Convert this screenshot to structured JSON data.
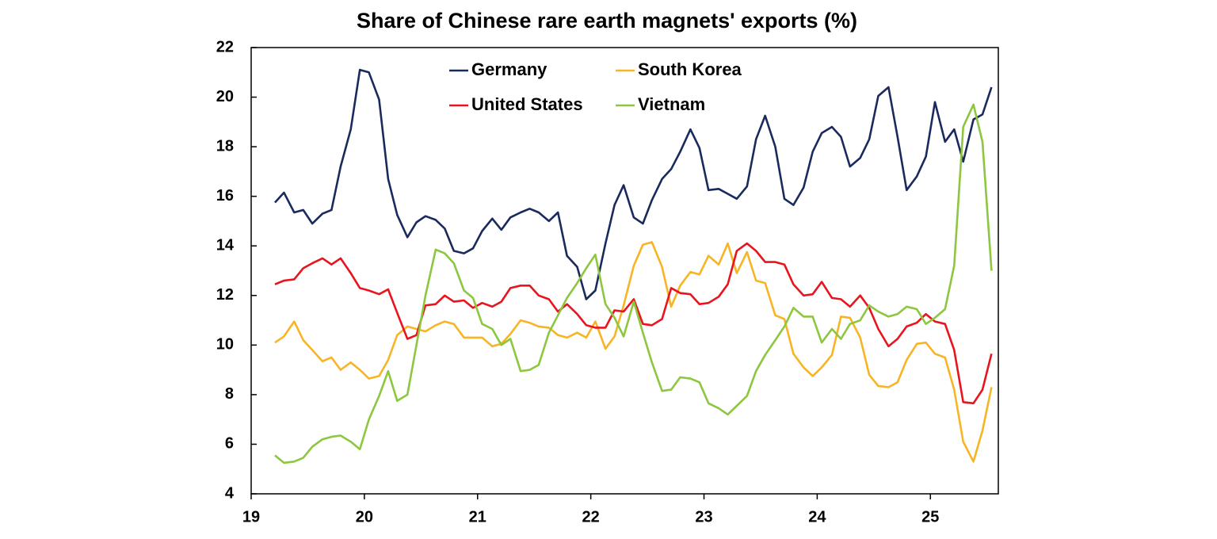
{
  "chart_data": {
    "type": "line",
    "title": "Share of Chinese rare earth magnets' exports (%)",
    "x": [
      19.21,
      19.29,
      19.38,
      19.46,
      19.54,
      19.63,
      19.71,
      19.79,
      19.88,
      19.96,
      20.04,
      20.13,
      20.21,
      20.29,
      20.38,
      20.46,
      20.54,
      20.63,
      20.71,
      20.79,
      20.88,
      20.96,
      21.04,
      21.13,
      21.21,
      21.29,
      21.38,
      21.46,
      21.54,
      21.63,
      21.71,
      21.79,
      21.88,
      21.96,
      22.04,
      22.13,
      22.21,
      22.29,
      22.38,
      22.46,
      22.54,
      22.63,
      22.71,
      22.79,
      22.88,
      22.96,
      23.04,
      23.13,
      23.21,
      23.29,
      23.38,
      23.46,
      23.54,
      23.63,
      23.71,
      23.79,
      23.88,
      23.96,
      24.04,
      24.13,
      24.21,
      24.29,
      24.38,
      24.46,
      24.54,
      24.63,
      24.71,
      24.79,
      24.88,
      24.96,
      25.04,
      25.13,
      25.21,
      25.29,
      25.38,
      25.46,
      25.54
    ],
    "series": [
      {
        "name": "Germany",
        "color": "#1b2a5c",
        "values": [
          15.75,
          16.15,
          15.35,
          15.45,
          14.9,
          15.3,
          15.45,
          17.2,
          18.7,
          21.1,
          21.0,
          19.9,
          16.7,
          15.25,
          14.35,
          14.95,
          15.2,
          15.05,
          14.7,
          13.8,
          13.7,
          13.9,
          14.6,
          15.1,
          14.65,
          15.15,
          15.35,
          15.5,
          15.35,
          15.0,
          15.35,
          13.6,
          13.15,
          11.85,
          12.2,
          14.1,
          15.65,
          16.45,
          15.15,
          14.9,
          15.85,
          16.7,
          17.1,
          17.8,
          18.7,
          17.95,
          16.25,
          16.3,
          16.1,
          15.9,
          16.4,
          18.3,
          19.25,
          18.0,
          15.9,
          15.65,
          16.35,
          17.8,
          18.55,
          18.8,
          18.4,
          17.2,
          17.55,
          18.3,
          20.05,
          20.4,
          18.4,
          16.25,
          16.8,
          17.6,
          19.8,
          18.2,
          18.7,
          17.4,
          19.1,
          19.3,
          20.4
        ]
      },
      {
        "name": "South Korea",
        "color": "#f7b526",
        "values": [
          10.1,
          10.35,
          10.95,
          10.2,
          9.8,
          9.35,
          9.5,
          9.0,
          9.3,
          9.0,
          8.65,
          8.75,
          9.4,
          10.4,
          10.75,
          10.65,
          10.55,
          10.8,
          10.95,
          10.85,
          10.3,
          10.3,
          10.3,
          9.95,
          10.05,
          10.45,
          11.0,
          10.9,
          10.75,
          10.7,
          10.4,
          10.3,
          10.5,
          10.3,
          10.95,
          9.85,
          10.35,
          11.6,
          13.2,
          14.05,
          14.15,
          13.15,
          11.55,
          12.4,
          12.95,
          12.85,
          13.6,
          13.25,
          14.1,
          12.9,
          13.75,
          12.6,
          12.5,
          11.2,
          11.05,
          9.65,
          9.1,
          8.75,
          9.1,
          9.6,
          11.15,
          11.1,
          10.3,
          8.8,
          8.35,
          8.3,
          8.5,
          9.4,
          10.05,
          10.1,
          9.65,
          9.5,
          8.2,
          6.1,
          5.3,
          6.55,
          8.3
        ]
      },
      {
        "name": "United States",
        "color": "#e8151e",
        "values": [
          12.45,
          12.6,
          12.65,
          13.1,
          13.3,
          13.5,
          13.25,
          13.5,
          12.9,
          12.3,
          12.2,
          12.05,
          12.25,
          11.3,
          10.25,
          10.4,
          11.6,
          11.65,
          12.0,
          11.75,
          11.8,
          11.5,
          11.7,
          11.55,
          11.75,
          12.3,
          12.4,
          12.4,
          12.0,
          11.85,
          11.35,
          11.65,
          11.25,
          10.8,
          10.7,
          10.7,
          11.4,
          11.35,
          11.85,
          10.85,
          10.8,
          11.05,
          12.3,
          12.1,
          12.05,
          11.65,
          11.7,
          11.95,
          12.45,
          13.8,
          14.1,
          13.8,
          13.35,
          13.35,
          13.25,
          12.45,
          12.0,
          12.05,
          12.55,
          11.9,
          11.85,
          11.55,
          12.0,
          11.5,
          10.65,
          9.95,
          10.25,
          10.75,
          10.9,
          11.25,
          10.95,
          10.85,
          9.8,
          7.7,
          7.65,
          8.2,
          9.65
        ]
      },
      {
        "name": "Vietnam",
        "color": "#8dc63f",
        "values": [
          5.55,
          5.25,
          5.3,
          5.45,
          5.9,
          6.2,
          6.3,
          6.35,
          6.1,
          5.8,
          7.0,
          7.95,
          8.95,
          7.75,
          8.0,
          10.0,
          12.0,
          13.85,
          13.7,
          13.3,
          12.2,
          11.9,
          10.85,
          10.65,
          10.0,
          10.25,
          8.95,
          9.0,
          9.2,
          10.5,
          11.2,
          11.9,
          12.5,
          13.1,
          13.65,
          11.65,
          11.1,
          10.35,
          11.75,
          10.5,
          9.3,
          8.15,
          8.2,
          8.7,
          8.65,
          8.5,
          7.65,
          7.45,
          7.2,
          7.55,
          7.95,
          8.95,
          9.6,
          10.2,
          10.75,
          11.5,
          11.15,
          11.15,
          10.1,
          10.65,
          10.25,
          10.85,
          11.0,
          11.6,
          11.35,
          11.15,
          11.25,
          11.55,
          11.45,
          10.85,
          11.1,
          11.45,
          13.2,
          18.8,
          19.7,
          18.2,
          13.0
        ]
      }
    ],
    "xlim": [
      19,
      25.6
    ],
    "xticks": [
      19,
      20,
      21,
      22,
      23,
      24,
      25
    ],
    "ylim": [
      4,
      22
    ],
    "yticks": [
      4,
      6,
      8,
      10,
      12,
      14,
      16,
      18,
      20,
      22
    ],
    "grid": false,
    "legend": "upper center"
  }
}
